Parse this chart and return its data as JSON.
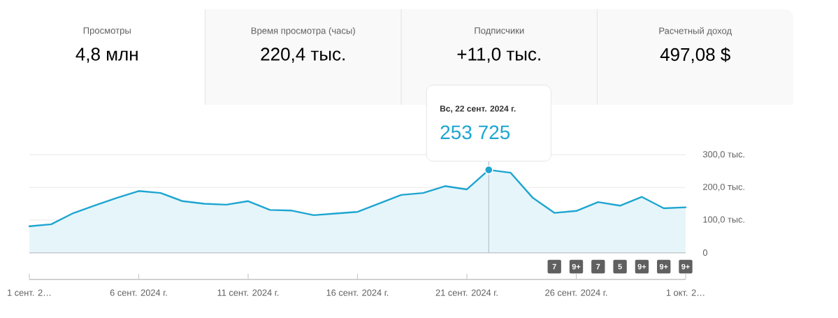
{
  "chart_data": [
    {
      "type": "other",
      "annotations": [
        "Просмотры",
        "4,8 млн",
        "Время просмотра (часы)",
        "220,4 тыс.",
        "Подписчики",
        "+11,0 тыс.",
        "Расчетный доход",
        "497,08 $"
      ]
    },
    {
      "type": "area",
      "color": "#1ea5d0",
      "x": [
        "2024-09-01",
        "2024-09-02",
        "2024-09-03",
        "2024-09-04",
        "2024-09-05",
        "2024-09-06",
        "2024-09-07",
        "2024-09-08",
        "2024-09-09",
        "2024-09-10",
        "2024-09-11",
        "2024-09-12",
        "2024-09-13",
        "2024-09-14",
        "2024-09-15",
        "2024-09-16",
        "2024-09-17",
        "2024-09-18",
        "2024-09-19",
        "2024-09-20",
        "2024-09-21",
        "2024-09-22",
        "2024-09-23",
        "2024-09-24",
        "2024-09-25",
        "2024-09-26",
        "2024-09-27",
        "2024-09-28",
        "2024-09-29",
        "2024-09-30",
        "2024-10-01"
      ],
      "values": [
        81,
        87,
        121,
        145,
        168,
        189,
        183,
        158,
        150,
        147,
        158,
        131,
        129,
        115,
        120,
        125,
        151,
        177,
        183,
        204,
        194,
        253.725,
        245,
        169,
        122,
        128,
        155,
        144,
        171,
        136,
        139
      ],
      "xlim": [
        "2024-09-01",
        "2024-10-01"
      ],
      "xticks": [
        {
          "value": "2024-09-01",
          "label": "1 сент. 2…"
        },
        {
          "value": "2024-09-06",
          "label": "6 сент. 2024 г."
        },
        {
          "value": "2024-09-11",
          "label": "11 сент. 2024 г."
        },
        {
          "value": "2024-09-16",
          "label": "16 сент. 2024 г."
        },
        {
          "value": "2024-09-21",
          "label": "21 сент. 2024 г."
        },
        {
          "value": "2024-09-26",
          "label": "26 сент. 2024 г."
        },
        {
          "value": "2024-10-01",
          "label": "1 окт. 2…"
        }
      ],
      "ylim": [
        0,
        300
      ],
      "yticks": [
        0,
        {
          "value": 100,
          "label": "100,0 тыс."
        },
        {
          "value": 200,
          "label": "200,0 тыс."
        },
        {
          "value": 300,
          "label": "300,0 тыс."
        }
      ],
      "grid": "y",
      "ref_lines": [
        {
          "axis": "x",
          "value": "2024-09-22",
          "color": "#b0bec5"
        }
      ],
      "annotations": [
        "Вс, 22 сент. 2024 г.",
        "253 725",
        "7",
        "9+",
        "7",
        "5",
        "9+",
        "9+",
        "9+"
      ]
    }
  ]
}
